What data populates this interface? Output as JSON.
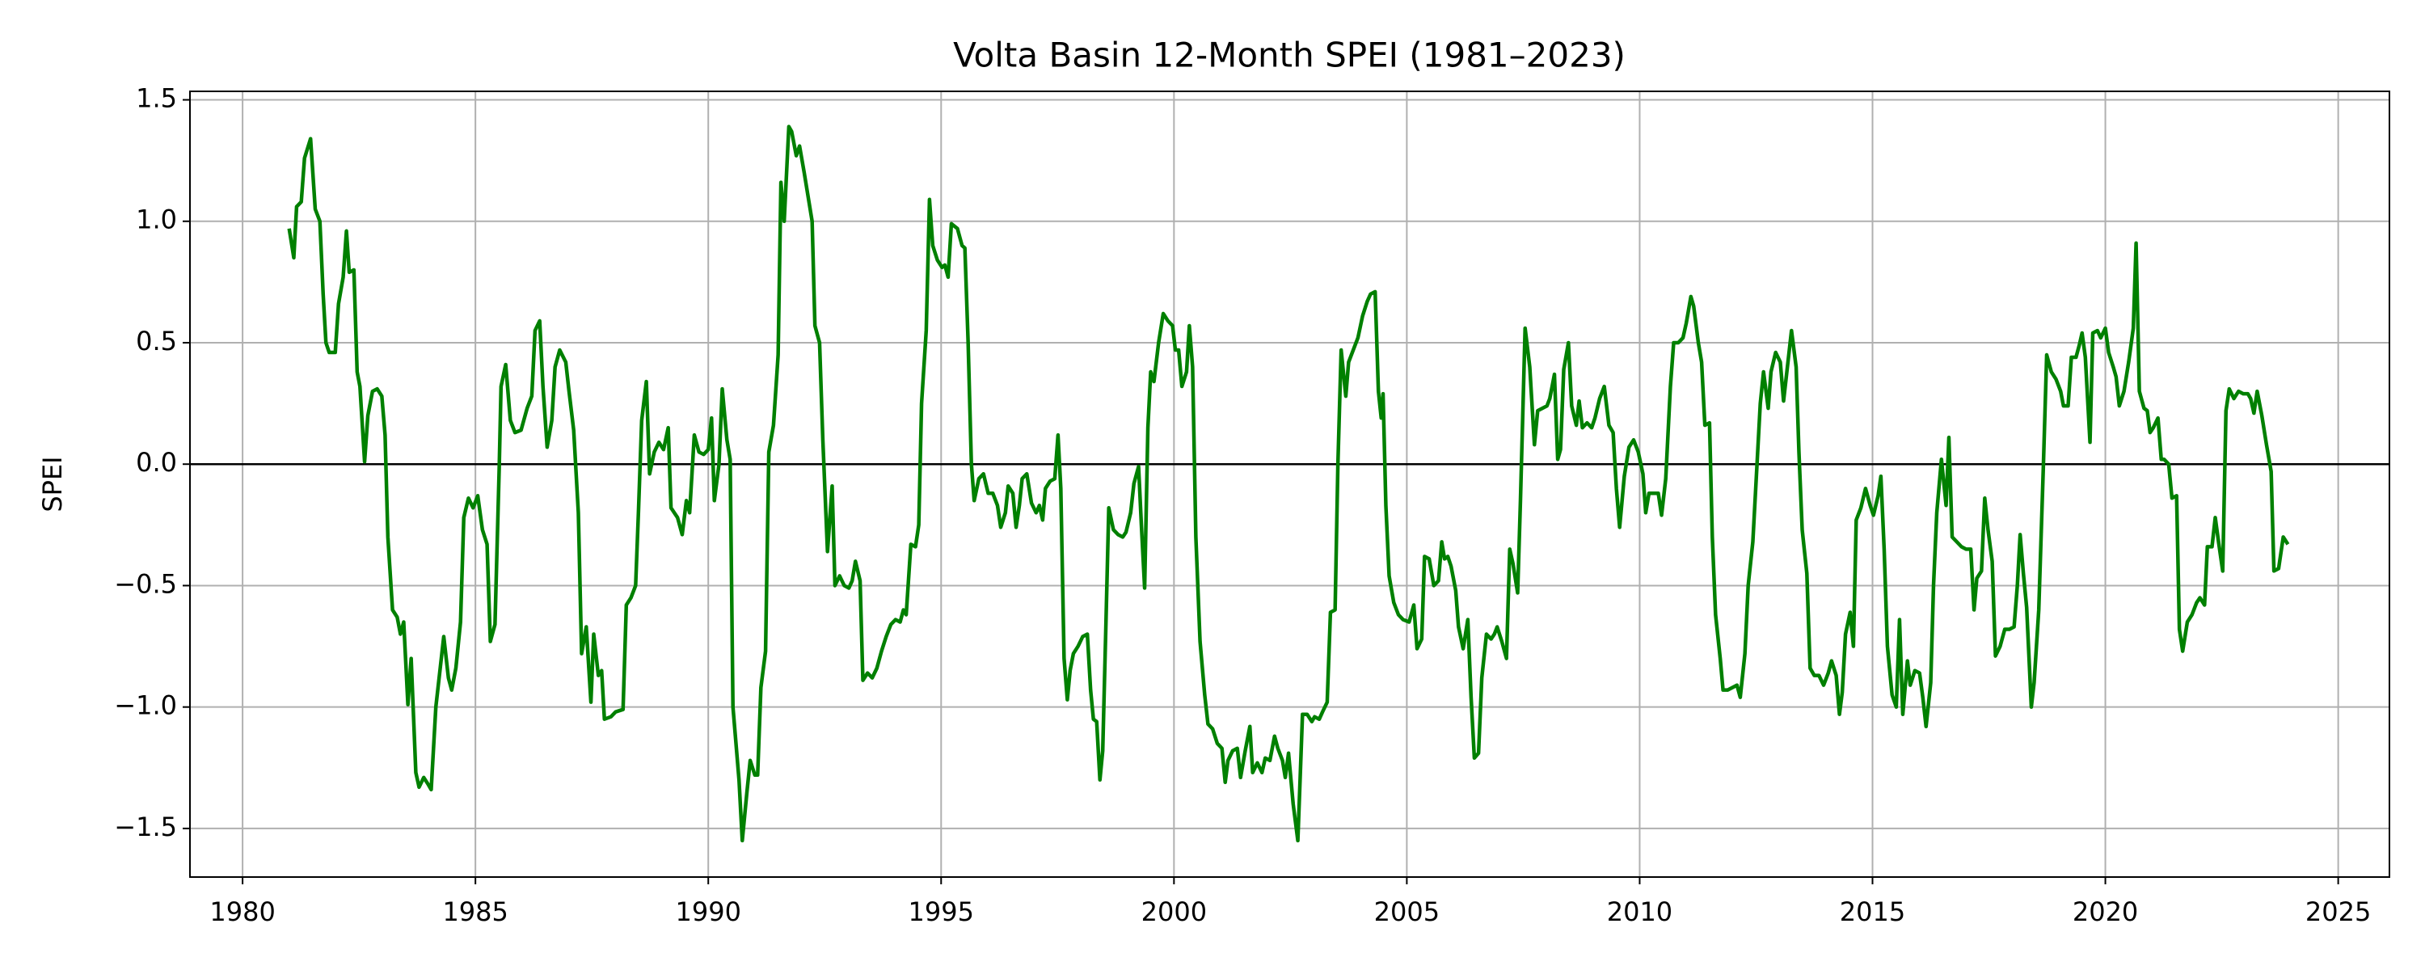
{
  "chart_data": {
    "type": "line",
    "title": "Volta Basin 12-Month SPEI (1981–2023)",
    "y_label": "SPEI",
    "color": "#008000",
    "grid": true,
    "hline": 0,
    "xlim": [
      1978.87,
      2026.1
    ],
    "ylim": [
      -1.7,
      1.535
    ],
    "xticks": [
      1980,
      1985,
      1990,
      1995,
      2000,
      2005,
      2010,
      2015,
      2020,
      2025
    ],
    "yticks": [
      {
        "value": -1.5,
        "label": "−1.5"
      },
      {
        "value": -1.0,
        "label": "−1.0"
      },
      {
        "value": -0.5,
        "label": "−0.5"
      },
      {
        "value": 0,
        "label": "0.0"
      },
      0.5,
      {
        "value": 1.0,
        "label": "1.0"
      },
      1.5
    ],
    "x": [
      1981.0,
      1981.1,
      1981.16,
      1981.26,
      1981.33,
      1981.46,
      1981.56,
      1981.66,
      1981.73,
      1981.79,
      1981.86,
      1981.99,
      1982.06,
      1982.16,
      1982.23,
      1982.29,
      1982.39,
      1982.46,
      1982.52,
      1982.62,
      1982.69,
      1982.79,
      1982.89,
      1982.99,
      1983.06,
      1983.12,
      1983.22,
      1983.32,
      1983.39,
      1983.46,
      1983.55,
      1983.62,
      1983.72,
      1983.79,
      1983.89,
      1983.99,
      1984.05,
      1984.15,
      1984.32,
      1984.42,
      1984.49,
      1984.58,
      1984.68,
      1984.75,
      1984.85,
      1984.95,
      1985.05,
      1985.15,
      1985.25,
      1985.32,
      1985.42,
      1985.51,
      1985.55,
      1985.65,
      1985.75,
      1985.85,
      1985.98,
      1986.11,
      1986.21,
      1986.28,
      1986.38,
      1986.45,
      1986.54,
      1986.64,
      1986.71,
      1986.81,
      1986.94,
      1987.01,
      1987.11,
      1987.21,
      1987.28,
      1987.38,
      1987.48,
      1987.54,
      1987.64,
      1987.71,
      1987.77,
      1987.91,
      1988.01,
      1988.17,
      1988.24,
      1988.34,
      1988.44,
      1988.5,
      1988.57,
      1988.67,
      1988.74,
      1988.84,
      1988.94,
      1989.04,
      1989.14,
      1989.2,
      1989.34,
      1989.44,
      1989.53,
      1989.6,
      1989.7,
      1989.8,
      1989.9,
      1990.0,
      1990.07,
      1990.13,
      1990.23,
      1990.3,
      1990.4,
      1990.47,
      1990.53,
      1990.66,
      1990.73,
      1990.83,
      1990.9,
      1991.0,
      1991.06,
      1991.13,
      1991.23,
      1991.3,
      1991.4,
      1991.5,
      1991.56,
      1991.63,
      1991.73,
      1991.79,
      1991.89,
      1991.96,
      1992.06,
      1992.23,
      1992.29,
      1992.39,
      1992.46,
      1992.56,
      1992.66,
      1992.72,
      1992.82,
      1992.92,
      1993.02,
      1993.09,
      1993.16,
      1993.26,
      1993.32,
      1993.42,
      1993.52,
      1993.62,
      1993.72,
      1993.82,
      1993.92,
      1994.02,
      1994.12,
      1994.19,
      1994.25,
      1994.35,
      1994.45,
      1994.52,
      1994.58,
      1994.68,
      1994.75,
      1994.82,
      1994.92,
      1995.02,
      1995.08,
      1995.15,
      1995.22,
      1995.35,
      1995.45,
      1995.51,
      1995.58,
      1995.65,
      1995.71,
      1995.81,
      1995.91,
      1996.01,
      1996.11,
      1996.21,
      1996.28,
      1996.38,
      1996.44,
      1996.54,
      1996.61,
      1996.68,
      1996.74,
      1996.84,
      1996.94,
      1997.04,
      1997.11,
      1997.18,
      1997.24,
      1997.34,
      1997.44,
      1997.51,
      1997.57,
      1997.64,
      1997.71,
      1997.77,
      1997.84,
      1997.94,
      1998.04,
      1998.14,
      1998.21,
      1998.27,
      1998.34,
      1998.41,
      1998.47,
      1998.54,
      1998.6,
      1998.7,
      1998.8,
      1998.9,
      1998.97,
      1999.07,
      1999.14,
      1999.24,
      1999.3,
      1999.37,
      1999.44,
      1999.5,
      1999.57,
      1999.67,
      1999.77,
      1999.87,
      1999.97,
      2000.03,
      2000.1,
      2000.17,
      2000.27,
      2000.33,
      2000.4,
      2000.47,
      2000.56,
      2000.66,
      2000.73,
      2000.83,
      2000.93,
      2001.03,
      2001.1,
      2001.16,
      2001.26,
      2001.36,
      2001.43,
      2001.53,
      2001.63,
      2001.69,
      2001.79,
      2001.89,
      2001.96,
      2002.06,
      2002.16,
      2002.23,
      2002.33,
      2002.39,
      2002.46,
      2002.56,
      2002.66,
      2002.76,
      2002.86,
      2002.96,
      2003.02,
      2003.12,
      2003.19,
      2003.29,
      2003.36,
      2003.46,
      2003.52,
      2003.59,
      2003.69,
      2003.75,
      2003.85,
      2003.95,
      2004.05,
      2004.15,
      2004.22,
      2004.32,
      2004.39,
      2004.45,
      2004.49,
      2004.55,
      2004.62,
      2004.72,
      2004.82,
      2004.92,
      2005.05,
      2005.15,
      2005.22,
      2005.32,
      2005.38,
      2005.48,
      2005.58,
      2005.68,
      2005.75,
      2005.81,
      2005.88,
      2005.95,
      2006.05,
      2006.11,
      2006.21,
      2006.31,
      2006.38,
      2006.45,
      2006.54,
      2006.61,
      2006.71,
      2006.81,
      2006.88,
      2006.94,
      2007.04,
      2007.14,
      2007.21,
      2007.28,
      2007.38,
      2007.44,
      2007.54,
      2007.64,
      2007.74,
      2007.81,
      2007.91,
      2008.01,
      2008.07,
      2008.17,
      2008.24,
      2008.3,
      2008.37,
      2008.47,
      2008.54,
      2008.64,
      2008.7,
      2008.77,
      2008.87,
      2008.97,
      2009.04,
      2009.14,
      2009.24,
      2009.34,
      2009.43,
      2009.5,
      2009.57,
      2009.67,
      2009.77,
      2009.87,
      2009.97,
      2010.07,
      2010.13,
      2010.2,
      2010.3,
      2010.4,
      2010.47,
      2010.56,
      2010.66,
      2010.73,
      2010.83,
      2010.93,
      2011.0,
      2011.1,
      2011.16,
      2011.26,
      2011.33,
      2011.4,
      2011.5,
      2011.56,
      2011.63,
      2011.73,
      2011.79,
      2011.89,
      2011.99,
      2012.09,
      2012.16,
      2012.26,
      2012.33,
      2012.43,
      2012.52,
      2012.59,
      2012.66,
      2012.76,
      2012.82,
      2012.92,
      2013.02,
      2013.09,
      2013.19,
      2013.26,
      2013.36,
      2013.42,
      2013.49,
      2013.59,
      2013.66,
      2013.75,
      2013.85,
      2013.95,
      2014.05,
      2014.12,
      2014.22,
      2014.29,
      2014.35,
      2014.42,
      2014.52,
      2014.59,
      2014.65,
      2014.75,
      2014.85,
      2014.95,
      2015.02,
      2015.12,
      2015.18,
      2015.25,
      2015.32,
      2015.42,
      2015.51,
      2015.58,
      2015.65,
      2015.75,
      2015.81,
      2015.91,
      2016.01,
      2016.08,
      2016.15,
      2016.25,
      2016.31,
      2016.38,
      2016.48,
      2016.58,
      2016.64,
      2016.71,
      2016.81,
      2016.91,
      2017.01,
      2017.11,
      2017.18,
      2017.24,
      2017.34,
      2017.41,
      2017.48,
      2017.57,
      2017.64,
      2017.74,
      2017.84,
      2017.94,
      2018.04,
      2018.11,
      2018.17,
      2018.24,
      2018.31,
      2018.41,
      2018.47,
      2018.57,
      2018.67,
      2018.74,
      2018.84,
      2018.94,
      2019.04,
      2019.1,
      2019.2,
      2019.27,
      2019.37,
      2019.44,
      2019.5,
      2019.57,
      2019.67,
      2019.73,
      2019.83,
      2019.9,
      2020.0,
      2020.07,
      2020.17,
      2020.23,
      2020.3,
      2020.4,
      2020.5,
      2020.6,
      2020.66,
      2020.73,
      2020.83,
      2020.9,
      2020.96,
      2021.03,
      2021.13,
      2021.2,
      2021.26,
      2021.36,
      2021.43,
      2021.53,
      2021.59,
      2021.66,
      2021.76,
      2021.86,
      2021.96,
      2022.03,
      2022.13,
      2022.19,
      2022.29,
      2022.36,
      2022.43,
      2022.52,
      2022.59,
      2022.66,
      2022.76,
      2022.86,
      2022.96,
      2023.06,
      2023.12,
      2023.19,
      2023.26,
      2023.36,
      2023.46,
      2023.56,
      2023.62,
      2023.72,
      2023.82,
      2023.92
    ],
    "values": [
      0.97,
      0.85,
      1.06,
      1.08,
      1.26,
      1.34,
      1.05,
      1.0,
      0.7,
      0.5,
      0.46,
      0.46,
      0.66,
      0.77,
      0.96,
      0.79,
      0.8,
      0.38,
      0.32,
      0.01,
      0.2,
      0.3,
      0.31,
      0.28,
      0.12,
      -0.3,
      -0.6,
      -0.63,
      -0.7,
      -0.65,
      -0.99,
      -0.8,
      -1.27,
      -1.33,
      -1.29,
      -1.32,
      -1.34,
      -1.0,
      -0.71,
      -0.88,
      -0.93,
      -0.84,
      -0.65,
      -0.22,
      -0.14,
      -0.18,
      -0.13,
      -0.27,
      -0.33,
      -0.73,
      -0.66,
      -0.02,
      0.32,
      0.41,
      0.18,
      0.13,
      0.14,
      0.23,
      0.28,
      0.55,
      0.59,
      0.32,
      0.07,
      0.18,
      0.4,
      0.47,
      0.42,
      0.3,
      0.14,
      -0.2,
      -0.78,
      -0.67,
      -0.98,
      -0.7,
      -0.87,
      -0.85,
      -1.05,
      -1.04,
      -1.02,
      -1.01,
      -0.58,
      -0.55,
      -0.5,
      -0.2,
      0.18,
      0.34,
      -0.04,
      0.05,
      0.09,
      0.06,
      0.15,
      -0.18,
      -0.22,
      -0.29,
      -0.15,
      -0.2,
      0.12,
      0.05,
      0.04,
      0.06,
      0.19,
      -0.15,
      0.0,
      0.31,
      0.1,
      0.02,
      -1.0,
      -1.3,
      -1.55,
      -1.35,
      -1.22,
      -1.28,
      -1.28,
      -0.92,
      -0.77,
      0.05,
      0.16,
      0.45,
      1.16,
      1.0,
      1.39,
      1.37,
      1.27,
      1.31,
      1.2,
      1.0,
      0.57,
      0.5,
      0.1,
      -0.36,
      -0.09,
      -0.5,
      -0.46,
      -0.5,
      -0.51,
      -0.48,
      -0.4,
      -0.48,
      -0.89,
      -0.86,
      -0.88,
      -0.84,
      -0.77,
      -0.71,
      -0.66,
      -0.64,
      -0.65,
      -0.6,
      -0.62,
      -0.33,
      -0.34,
      -0.25,
      0.25,
      0.55,
      1.09,
      0.9,
      0.84,
      0.81,
      0.82,
      0.77,
      0.99,
      0.97,
      0.9,
      0.89,
      0.5,
      0.0,
      -0.15,
      -0.06,
      -0.04,
      -0.12,
      -0.12,
      -0.17,
      -0.26,
      -0.2,
      -0.09,
      -0.12,
      -0.26,
      -0.17,
      -0.06,
      -0.04,
      -0.16,
      -0.2,
      -0.17,
      -0.23,
      -0.1,
      -0.07,
      -0.06,
      0.12,
      -0.1,
      -0.8,
      -0.97,
      -0.85,
      -0.78,
      -0.75,
      -0.71,
      -0.7,
      -0.93,
      -1.05,
      -1.06,
      -1.3,
      -1.18,
      -0.65,
      -0.18,
      -0.27,
      -0.29,
      -0.3,
      -0.28,
      -0.2,
      -0.08,
      -0.01,
      -0.25,
      -0.51,
      0.15,
      0.38,
      0.34,
      0.5,
      0.62,
      0.59,
      0.57,
      0.47,
      0.47,
      0.32,
      0.38,
      0.57,
      0.4,
      -0.3,
      -0.73,
      -0.95,
      -1.07,
      -1.09,
      -1.15,
      -1.17,
      -1.31,
      -1.22,
      -1.18,
      -1.17,
      -1.29,
      -1.18,
      -1.08,
      -1.27,
      -1.23,
      -1.27,
      -1.21,
      -1.22,
      -1.12,
      -1.17,
      -1.22,
      -1.29,
      -1.19,
      -1.4,
      -1.55,
      -1.03,
      -1.03,
      -1.06,
      -1.04,
      -1.05,
      -1.02,
      -0.98,
      -0.61,
      -0.6,
      0.0,
      0.47,
      0.28,
      0.42,
      0.47,
      0.52,
      0.61,
      0.67,
      0.7,
      0.71,
      0.3,
      0.19,
      0.29,
      -0.17,
      -0.46,
      -0.57,
      -0.62,
      -0.64,
      -0.65,
      -0.58,
      -0.76,
      -0.72,
      -0.38,
      -0.39,
      -0.5,
      -0.48,
      -0.32,
      -0.39,
      -0.38,
      -0.42,
      -0.52,
      -0.67,
      -0.76,
      -0.64,
      -0.96,
      -1.21,
      -1.19,
      -0.88,
      -0.7,
      -0.72,
      -0.7,
      -0.67,
      -0.73,
      -0.8,
      -0.35,
      -0.41,
      -0.53,
      -0.15,
      0.56,
      0.4,
      0.08,
      0.22,
      0.23,
      0.24,
      0.27,
      0.37,
      0.02,
      0.06,
      0.39,
      0.5,
      0.24,
      0.16,
      0.26,
      0.15,
      0.17,
      0.15,
      0.19,
      0.27,
      0.32,
      0.16,
      0.13,
      -0.1,
      -0.26,
      -0.05,
      0.07,
      0.1,
      0.05,
      -0.04,
      -0.2,
      -0.12,
      -0.12,
      -0.12,
      -0.21,
      -0.06,
      0.32,
      0.5,
      0.5,
      0.52,
      0.58,
      0.69,
      0.65,
      0.5,
      0.42,
      0.16,
      0.17,
      -0.3,
      -0.62,
      -0.8,
      -0.93,
      -0.93,
      -0.92,
      -0.91,
      -0.96,
      -0.78,
      -0.5,
      -0.32,
      0.0,
      0.25,
      0.38,
      0.23,
      0.38,
      0.46,
      0.42,
      0.26,
      0.43,
      0.55,
      0.4,
      0.05,
      -0.27,
      -0.45,
      -0.84,
      -0.87,
      -0.87,
      -0.91,
      -0.86,
      -0.81,
      -0.87,
      -1.03,
      -0.94,
      -0.7,
      -0.61,
      -0.75,
      -0.23,
      -0.18,
      -0.1,
      -0.17,
      -0.21,
      -0.13,
      -0.05,
      -0.35,
      -0.75,
      -0.95,
      -1.0,
      -0.64,
      -1.03,
      -0.81,
      -0.91,
      -0.85,
      -0.86,
      -0.96,
      -1.08,
      -0.9,
      -0.5,
      -0.2,
      0.02,
      -0.17,
      0.11,
      -0.3,
      -0.32,
      -0.34,
      -0.35,
      -0.35,
      -0.6,
      -0.47,
      -0.44,
      -0.14,
      -0.27,
      -0.4,
      -0.79,
      -0.75,
      -0.68,
      -0.68,
      -0.67,
      -0.5,
      -0.29,
      -0.45,
      -0.59,
      -1.0,
      -0.9,
      -0.6,
      0.0,
      0.45,
      0.38,
      0.35,
      0.3,
      0.24,
      0.24,
      0.44,
      0.44,
      0.49,
      0.54,
      0.44,
      0.09,
      0.54,
      0.55,
      0.52,
      0.56,
      0.46,
      0.4,
      0.36,
      0.24,
      0.3,
      0.42,
      0.56,
      0.91,
      0.3,
      0.23,
      0.22,
      0.13,
      0.15,
      0.19,
      0.02,
      0.02,
      0.0,
      -0.14,
      -0.13,
      -0.68,
      -0.77,
      -0.65,
      -0.62,
      -0.57,
      -0.55,
      -0.58,
      -0.34,
      -0.34,
      -0.22,
      -0.32,
      -0.44,
      0.22,
      0.31,
      0.27,
      0.3,
      0.29,
      0.29,
      0.27,
      0.21,
      0.3,
      0.2,
      0.08,
      -0.03,
      -0.44,
      -0.43,
      -0.3,
      -0.33
    ]
  }
}
